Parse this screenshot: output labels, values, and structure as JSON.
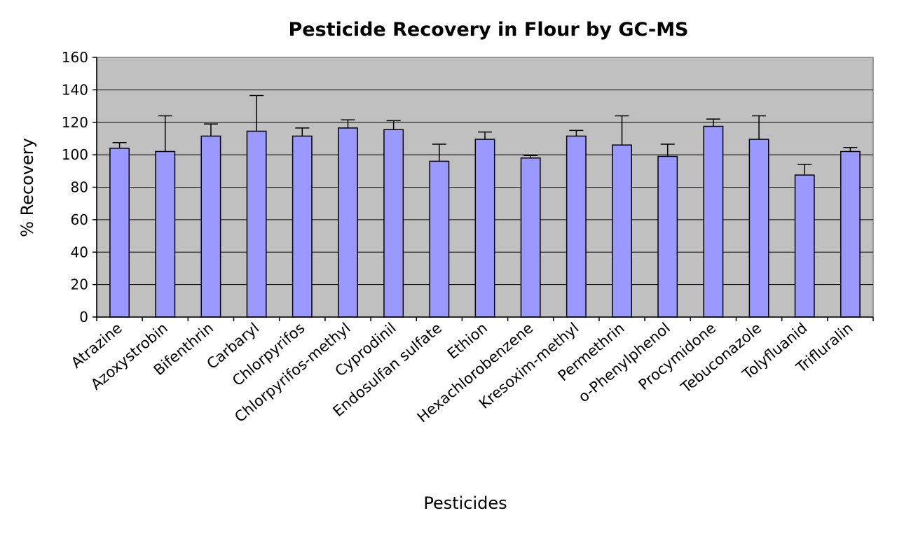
{
  "chart_data": {
    "type": "bar",
    "title": "Pesticide Recovery in Flour by GC-MS",
    "xlabel": "Pesticides",
    "ylabel": "% Recovery",
    "ylim": [
      0,
      160
    ],
    "yticks": [
      0,
      20,
      40,
      60,
      80,
      100,
      120,
      140,
      160
    ],
    "grid": true,
    "legend": "none",
    "categories": [
      "Atrazine",
      "Azoxystrobin",
      "Bifenthrin",
      "Carbaryl",
      "Chlorpyrifos",
      "Chlorpyrifos-methyl",
      "Cyprodinil",
      "Endosulfan sulfate",
      "Ethion",
      "Hexachlorobenzene",
      "Kresoxim-methyl",
      "Permethrin",
      "o-Phenylphenol",
      "Procymidone",
      "Tebuconazole",
      "Tolyfluanid",
      "Trifluralin"
    ],
    "values": [
      104,
      102,
      111.5,
      114.5,
      111.5,
      116.5,
      115.5,
      96,
      109.5,
      98,
      111.5,
      106,
      99,
      117.5,
      109.5,
      87.5,
      102
    ],
    "error_plus": [
      3.5,
      22,
      7.5,
      22,
      5,
      5,
      5.5,
      10.5,
      4.5,
      1.5,
      3.5,
      18,
      7.5,
      4.5,
      14.5,
      6.5,
      2.5
    ],
    "colors": {
      "bar": "#9999ff",
      "plot_bg": "#c0c0c0",
      "grid": "#000000",
      "axis": "#000000"
    }
  }
}
